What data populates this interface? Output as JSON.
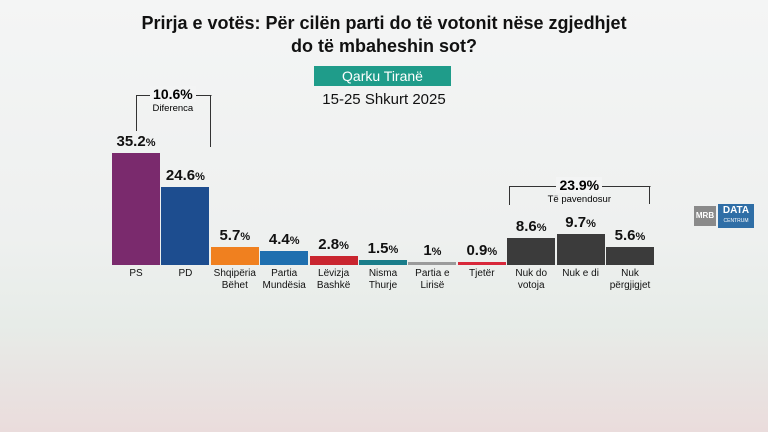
{
  "chart_data": {
    "type": "bar",
    "title": "Prirja e votës: Për cilën parti do të votonit nëse zgjedhjet do të mbaheshin sot?",
    "subtitle": "Qarku Tiranë",
    "date": "15-25 Shkurt 2025",
    "categories": [
      "PS",
      "PD",
      "Shqipëria Bëhet",
      "Partia Mundësia",
      "Lëvizja Bashkë",
      "Nisma Thurje",
      "Partia e Lirisë",
      "Tjetër",
      "Nuk do votoja",
      "Nuk e di",
      "Nuk përgjigjet"
    ],
    "values": [
      35.2,
      24.6,
      5.7,
      4.4,
      2.8,
      1.5,
      1,
      0.9,
      8.6,
      9.7,
      5.6
    ],
    "value_labels": [
      "35.2%",
      "24.6%",
      "5.7%",
      "4.4%",
      "2.8%",
      "1.5%",
      "1%",
      "0.9%",
      "8.6%",
      "9.7%",
      "5.6%"
    ],
    "colors": [
      "#7a2a6d",
      "#1d4d8f",
      "#f0801f",
      "#1f6faf",
      "#c9252f",
      "#1a7d8a",
      "#9b9b9b",
      "#d8283a",
      "#3b3b3b",
      "#3b3b3b",
      "#3b3b3b"
    ],
    "annotations": [
      {
        "label": "10.6%",
        "text": "Diferenca"
      },
      {
        "label": "23.9%",
        "text": "Të pavendosur"
      }
    ],
    "logo": [
      "MRB",
      "DATA",
      "CENTRUM"
    ]
  }
}
